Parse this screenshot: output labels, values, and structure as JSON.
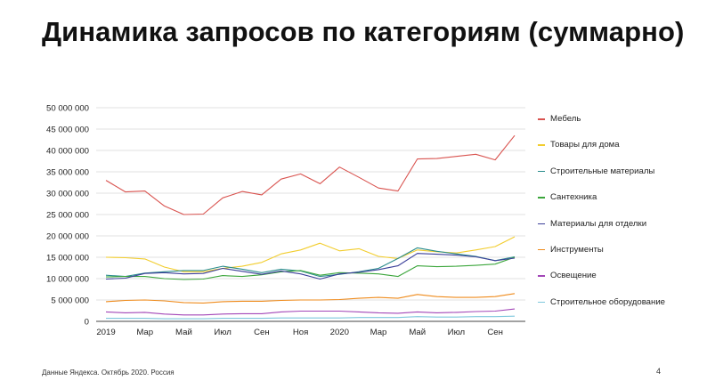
{
  "slide": {
    "title": "Динамика запросов по категориям (суммарно)",
    "footer": "Данные Яндекса. Октябрь 2020. Россия",
    "page_number": "4"
  },
  "chart_data": {
    "type": "line",
    "ylim": [
      0,
      50000000
    ],
    "yticks": [
      0,
      5000000,
      10000000,
      15000000,
      20000000,
      25000000,
      30000000,
      35000000,
      40000000,
      45000000,
      50000000
    ],
    "ytick_labels": [
      "0",
      "5 000 000",
      "10 000 000",
      "15 000 000",
      "20 000 000",
      "25 000 000",
      "30 000 000",
      "35 000 000",
      "40 000 000",
      "45 000 000",
      "50 000 000"
    ],
    "x_points": 22,
    "xtick_labels": [
      {
        "label": "2019",
        "index": 0
      },
      {
        "label": "Мар",
        "index": 2
      },
      {
        "label": "Май",
        "index": 4
      },
      {
        "label": "Июл",
        "index": 6
      },
      {
        "label": "Сен",
        "index": 8
      },
      {
        "label": "Ноя",
        "index": 10
      },
      {
        "label": "2020",
        "index": 12
      },
      {
        "label": "Мар",
        "index": 14
      },
      {
        "label": "Май",
        "index": 16
      },
      {
        "label": "Июл",
        "index": 18
      },
      {
        "label": "Сен",
        "index": 20
      }
    ],
    "grid": true,
    "legend_position": "right",
    "series": [
      {
        "name": "Мебель",
        "color": "#d9534f",
        "values": [
          33000000,
          30300000,
          30500000,
          27000000,
          25000000,
          25100000,
          28900000,
          30400000,
          29600000,
          33300000,
          34500000,
          32200000,
          36100000,
          33700000,
          31200000,
          30500000,
          38000000,
          38100000,
          38600000,
          39100000,
          37800000,
          43500000
        ]
      },
      {
        "name": "Товары для дома",
        "color": "#f2cd2e",
        "values": [
          15000000,
          14900000,
          14600000,
          12700000,
          11600000,
          11600000,
          12400000,
          12900000,
          13800000,
          15800000,
          16700000,
          18300000,
          16500000,
          17000000,
          15200000,
          14700000,
          16700000,
          16300000,
          16000000,
          16700000,
          17500000,
          19800000
        ]
      },
      {
        "name": "Строительные материалы",
        "color": "#2a8c8c",
        "values": [
          10800000,
          10500000,
          11300000,
          11600000,
          11900000,
          11900000,
          12900000,
          12200000,
          11400000,
          12200000,
          11800000,
          10500000,
          11000000,
          11600000,
          12400000,
          14700000,
          17200000,
          16400000,
          15800000,
          15200000,
          14200000,
          15100000
        ]
      },
      {
        "name": "Сантехника",
        "color": "#3ca63c",
        "values": [
          10400000,
          10500000,
          10500000,
          10000000,
          9800000,
          9900000,
          10700000,
          10500000,
          10900000,
          11600000,
          11900000,
          10800000,
          11400000,
          11300000,
          11100000,
          10500000,
          13000000,
          12800000,
          12900000,
          13100000,
          13400000,
          15000000
        ]
      },
      {
        "name": "Материалы для отделки",
        "color": "#3b3f99",
        "values": [
          9900000,
          10100000,
          11200000,
          11400000,
          11100000,
          11200000,
          12400000,
          11700000,
          11000000,
          11800000,
          11100000,
          9900000,
          11100000,
          11500000,
          12100000,
          13000000,
          15900000,
          15700000,
          15500000,
          15100000,
          14200000,
          14800000
        ]
      },
      {
        "name": "Инструменты",
        "color": "#ef8b1c",
        "values": [
          4600000,
          4900000,
          5000000,
          4800000,
          4400000,
          4300000,
          4600000,
          4700000,
          4700000,
          4900000,
          5000000,
          5000000,
          5100000,
          5400000,
          5600000,
          5400000,
          6300000,
          5800000,
          5600000,
          5600000,
          5800000,
          6500000
        ]
      },
      {
        "name": "Освещение",
        "color": "#a347b8",
        "values": [
          2200000,
          2000000,
          2100000,
          1700000,
          1500000,
          1500000,
          1700000,
          1800000,
          1800000,
          2200000,
          2400000,
          2400000,
          2400000,
          2200000,
          2000000,
          1900000,
          2200000,
          2000000,
          2100000,
          2300000,
          2400000,
          2900000
        ]
      },
      {
        "name": "Строительное оборудование",
        "color": "#7fc8dd",
        "values": [
          700000,
          700000,
          700000,
          600000,
          600000,
          600000,
          700000,
          700000,
          700000,
          800000,
          800000,
          800000,
          800000,
          900000,
          900000,
          900000,
          1100000,
          1000000,
          1000000,
          1100000,
          1100000,
          1200000
        ]
      }
    ]
  }
}
